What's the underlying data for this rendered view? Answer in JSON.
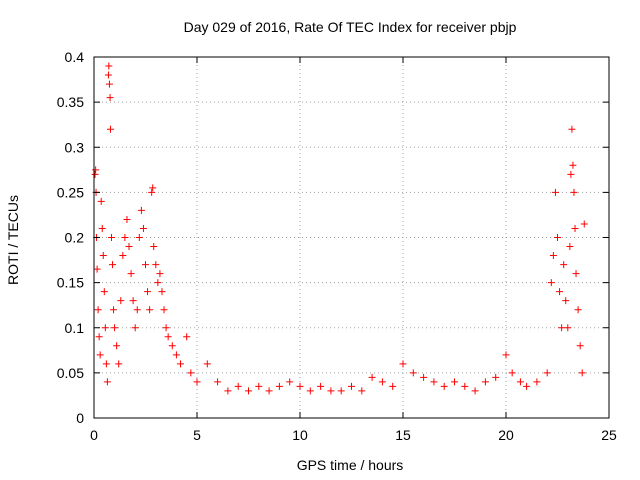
{
  "chart_data": {
    "type": "scatter",
    "title": "Day 029 of 2016, Rate Of TEC Index for receiver pbjp",
    "xlabel": "GPS time / hours",
    "ylabel": "ROTI / TECUs",
    "xlim": [
      0,
      25
    ],
    "ylim": [
      0,
      0.4
    ],
    "xticks": [
      0,
      5,
      10,
      15,
      20,
      25
    ],
    "yticks": [
      0,
      0.05,
      0.1,
      0.15,
      0.2,
      0.25,
      0.3,
      0.35,
      0.4
    ],
    "xtick_labels": [
      "0",
      "5",
      "10",
      "15",
      "20",
      "25"
    ],
    "ytick_labels": [
      "0",
      "0.05",
      "0.1",
      "0.15",
      "0.2",
      "0.25",
      "0.3",
      "0.35",
      "0.4"
    ],
    "grid": true,
    "marker": "+",
    "color": "#ff0000",
    "series": [
      {
        "name": "ROTI",
        "points": [
          [
            0.05,
            0.27
          ],
          [
            0.08,
            0.275
          ],
          [
            0.1,
            0.25
          ],
          [
            0.12,
            0.2
          ],
          [
            0.15,
            0.165
          ],
          [
            0.2,
            0.12
          ],
          [
            0.25,
            0.09
          ],
          [
            0.3,
            0.07
          ],
          [
            0.35,
            0.24
          ],
          [
            0.4,
            0.21
          ],
          [
            0.45,
            0.18
          ],
          [
            0.5,
            0.14
          ],
          [
            0.55,
            0.1
          ],
          [
            0.6,
            0.06
          ],
          [
            0.65,
            0.04
          ],
          [
            0.7,
            0.38
          ],
          [
            0.72,
            0.39
          ],
          [
            0.75,
            0.37
          ],
          [
            0.78,
            0.355
          ],
          [
            0.8,
            0.32
          ],
          [
            0.85,
            0.2
          ],
          [
            0.9,
            0.17
          ],
          [
            0.95,
            0.12
          ],
          [
            1.0,
            0.1
          ],
          [
            1.1,
            0.08
          ],
          [
            1.2,
            0.06
          ],
          [
            1.3,
            0.13
          ],
          [
            1.4,
            0.18
          ],
          [
            1.5,
            0.2
          ],
          [
            1.6,
            0.22
          ],
          [
            1.7,
            0.19
          ],
          [
            1.8,
            0.16
          ],
          [
            1.9,
            0.13
          ],
          [
            2.0,
            0.1
          ],
          [
            2.1,
            0.12
          ],
          [
            2.2,
            0.2
          ],
          [
            2.3,
            0.23
          ],
          [
            2.4,
            0.21
          ],
          [
            2.5,
            0.17
          ],
          [
            2.6,
            0.14
          ],
          [
            2.7,
            0.12
          ],
          [
            2.8,
            0.25
          ],
          [
            2.85,
            0.255
          ],
          [
            2.9,
            0.19
          ],
          [
            3.0,
            0.17
          ],
          [
            3.1,
            0.15
          ],
          [
            3.2,
            0.16
          ],
          [
            3.3,
            0.14
          ],
          [
            3.4,
            0.12
          ],
          [
            3.5,
            0.1
          ],
          [
            3.6,
            0.09
          ],
          [
            3.8,
            0.08
          ],
          [
            4.0,
            0.07
          ],
          [
            4.2,
            0.06
          ],
          [
            4.5,
            0.09
          ],
          [
            4.7,
            0.05
          ],
          [
            5.0,
            0.04
          ],
          [
            5.5,
            0.06
          ],
          [
            6.0,
            0.04
          ],
          [
            6.5,
            0.03
          ],
          [
            7.0,
            0.035
          ],
          [
            7.5,
            0.03
          ],
          [
            8.0,
            0.035
          ],
          [
            8.5,
            0.03
          ],
          [
            9.0,
            0.035
          ],
          [
            9.5,
            0.04
          ],
          [
            10.0,
            0.035
          ],
          [
            10.5,
            0.03
          ],
          [
            11.0,
            0.035
          ],
          [
            11.5,
            0.03
          ],
          [
            12.0,
            0.03
          ],
          [
            12.5,
            0.035
          ],
          [
            13.0,
            0.03
          ],
          [
            13.5,
            0.045
          ],
          [
            14.0,
            0.04
          ],
          [
            14.5,
            0.035
          ],
          [
            15.0,
            0.06
          ],
          [
            15.5,
            0.05
          ],
          [
            16.0,
            0.045
          ],
          [
            16.5,
            0.04
          ],
          [
            17.0,
            0.035
          ],
          [
            17.5,
            0.04
          ],
          [
            18.0,
            0.035
          ],
          [
            18.5,
            0.03
          ],
          [
            19.0,
            0.04
          ],
          [
            19.5,
            0.045
          ],
          [
            20.0,
            0.07
          ],
          [
            20.3,
            0.05
          ],
          [
            20.7,
            0.04
          ],
          [
            21.0,
            0.035
          ],
          [
            21.5,
            0.04
          ],
          [
            22.0,
            0.05
          ],
          [
            22.2,
            0.15
          ],
          [
            22.3,
            0.18
          ],
          [
            22.4,
            0.25
          ],
          [
            22.5,
            0.2
          ],
          [
            22.6,
            0.14
          ],
          [
            22.7,
            0.1
          ],
          [
            22.8,
            0.17
          ],
          [
            22.9,
            0.13
          ],
          [
            23.0,
            0.1
          ],
          [
            23.1,
            0.19
          ],
          [
            23.15,
            0.27
          ],
          [
            23.2,
            0.32
          ],
          [
            23.25,
            0.28
          ],
          [
            23.3,
            0.25
          ],
          [
            23.35,
            0.21
          ],
          [
            23.4,
            0.16
          ],
          [
            23.5,
            0.12
          ],
          [
            23.6,
            0.08
          ],
          [
            23.7,
            0.05
          ],
          [
            23.8,
            0.215
          ]
        ]
      }
    ]
  }
}
